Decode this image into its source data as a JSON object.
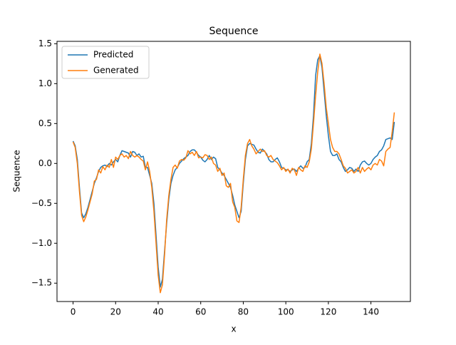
{
  "chart_data": {
    "type": "line",
    "title": "Sequence",
    "xlabel": "x",
    "ylabel": "Sequence",
    "x": [
      0,
      1,
      2,
      3,
      4,
      5,
      6,
      7,
      8,
      9,
      10,
      11,
      12,
      13,
      14,
      15,
      16,
      17,
      18,
      19,
      20,
      21,
      22,
      23,
      24,
      25,
      26,
      27,
      28,
      29,
      30,
      31,
      32,
      33,
      34,
      35,
      36,
      37,
      38,
      39,
      40,
      41,
      42,
      43,
      44,
      45,
      46,
      47,
      48,
      49,
      50,
      51,
      52,
      53,
      54,
      55,
      56,
      57,
      58,
      59,
      60,
      61,
      62,
      63,
      64,
      65,
      66,
      67,
      68,
      69,
      70,
      71,
      72,
      73,
      74,
      75,
      76,
      77,
      78,
      79,
      80,
      81,
      82,
      83,
      84,
      85,
      86,
      87,
      88,
      89,
      90,
      91,
      92,
      93,
      94,
      95,
      96,
      97,
      98,
      99,
      100,
      101,
      102,
      103,
      104,
      105,
      106,
      107,
      108,
      109,
      110,
      111,
      112,
      113,
      114,
      115,
      116,
      117,
      118,
      119,
      120,
      121,
      122,
      123,
      124,
      125,
      126,
      127,
      128,
      129,
      130,
      131,
      132,
      133,
      134,
      135,
      136,
      137,
      138,
      139,
      140,
      141,
      142,
      143,
      144,
      145,
      146,
      147,
      148,
      149,
      150,
      151
    ],
    "series": [
      {
        "name": "Predicted",
        "color": "#1f77b4",
        "values": [
          0.28,
          0.22,
          0.05,
          -0.3,
          -0.62,
          -0.68,
          -0.63,
          -0.55,
          -0.45,
          -0.35,
          -0.25,
          -0.18,
          -0.1,
          -0.05,
          -0.03,
          -0.02,
          -0.04,
          0.0,
          -0.02,
          0.02,
          0.05,
          0.02,
          0.1,
          0.16,
          0.15,
          0.14,
          0.13,
          0.08,
          0.15,
          0.14,
          0.1,
          0.12,
          0.08,
          0.09,
          -0.05,
          -0.05,
          -0.15,
          -0.25,
          -0.5,
          -0.9,
          -1.3,
          -1.55,
          -1.45,
          -1.1,
          -0.75,
          -0.45,
          -0.25,
          -0.15,
          -0.08,
          -0.05,
          0.0,
          0.03,
          0.06,
          0.08,
          0.1,
          0.15,
          0.17,
          0.17,
          0.14,
          0.1,
          0.08,
          0.04,
          0.02,
          0.05,
          0.1,
          0.05,
          0.08,
          0.06,
          -0.05,
          -0.08,
          -0.12,
          -0.15,
          -0.2,
          -0.25,
          -0.3,
          -0.4,
          -0.52,
          -0.6,
          -0.68,
          -0.6,
          -0.25,
          0.05,
          0.22,
          0.25,
          0.24,
          0.23,
          0.18,
          0.14,
          0.13,
          0.18,
          0.15,
          0.12,
          0.05,
          0.02,
          0.02,
          0.05,
          0.07,
          0.02,
          -0.05,
          -0.06,
          -0.08,
          -0.08,
          -0.1,
          -0.08,
          -0.07,
          -0.1,
          -0.06,
          -0.03,
          -0.06,
          -0.05,
          0.02,
          0.05,
          0.25,
          0.6,
          1.1,
          1.3,
          1.35,
          1.2,
          0.9,
          0.6,
          0.35,
          0.15,
          0.1,
          0.1,
          0.12,
          0.05,
          0.02,
          -0.05,
          -0.1,
          -0.08,
          -0.05,
          -0.06,
          -0.1,
          -0.07,
          -0.1,
          -0.02,
          0.02,
          0.03,
          0.0,
          -0.02,
          0.0,
          0.05,
          0.08,
          0.1,
          0.15,
          0.17,
          0.22,
          0.3,
          0.31,
          0.32,
          0.3,
          0.52
        ]
      },
      {
        "name": "Generated",
        "color": "#ff7f0e",
        "values": [
          0.27,
          0.2,
          0.0,
          -0.35,
          -0.65,
          -0.73,
          -0.67,
          -0.58,
          -0.48,
          -0.38,
          -0.22,
          -0.2,
          -0.08,
          -0.12,
          -0.04,
          -0.08,
          -0.02,
          -0.05,
          0.05,
          -0.05,
          0.08,
          0.05,
          0.1,
          0.12,
          0.08,
          0.1,
          0.06,
          0.15,
          0.1,
          0.08,
          0.1,
          0.08,
          0.05,
          0.03,
          -0.08,
          0.02,
          -0.1,
          -0.3,
          -0.6,
          -1.0,
          -1.4,
          -1.62,
          -1.52,
          -1.15,
          -0.7,
          -0.4,
          -0.2,
          -0.05,
          -0.02,
          -0.06,
          0.03,
          0.05,
          0.04,
          0.07,
          0.16,
          0.12,
          0.14,
          0.1,
          0.15,
          0.07,
          0.08,
          0.07,
          0.11,
          0.1,
          0.05,
          0.08,
          0.0,
          -0.02,
          -0.1,
          -0.06,
          -0.15,
          -0.12,
          -0.28,
          -0.3,
          -0.25,
          -0.48,
          -0.55,
          -0.72,
          -0.74,
          -0.55,
          -0.2,
          0.1,
          0.25,
          0.3,
          0.22,
          0.18,
          0.12,
          0.15,
          0.18,
          0.15,
          0.16,
          0.1,
          0.08,
          0.1,
          0.05,
          0.03,
          0.01,
          -0.03,
          -0.08,
          -0.05,
          -0.1,
          -0.07,
          -0.12,
          -0.06,
          -0.08,
          -0.15,
          -0.05,
          -0.08,
          -0.1,
          -0.03,
          -0.05,
          0.02,
          0.18,
          0.5,
          0.85,
          1.15,
          1.37,
          1.25,
          1.0,
          0.7,
          0.5,
          0.3,
          0.2,
          0.15,
          0.15,
          0.12,
          0.05,
          -0.03,
          -0.06,
          -0.12,
          -0.1,
          -0.08,
          -0.12,
          -0.1,
          -0.05,
          -0.12,
          -0.05,
          -0.1,
          -0.07,
          -0.05,
          -0.08,
          -0.02,
          0.0,
          -0.02,
          0.05,
          0.03,
          -0.03,
          0.15,
          0.18,
          0.2,
          0.4,
          0.64
        ]
      }
    ],
    "xlim": [
      -7.55,
      158.55
    ],
    "ylim": [
      -1.73,
      1.53
    ],
    "xticks": [
      0,
      20,
      40,
      60,
      80,
      100,
      120,
      140
    ],
    "yticks": [
      {
        "value": -1.5,
        "label": "−1.5"
      },
      {
        "value": -1.0,
        "label": "−1.0"
      },
      {
        "value": -0.5,
        "label": "−0.5"
      },
      {
        "value": 0.0,
        "label": "0.0"
      },
      0.5,
      {
        "value": 1.0,
        "label": "1.0"
      },
      1.5
    ],
    "legend": "upper left",
    "grid": false
  }
}
